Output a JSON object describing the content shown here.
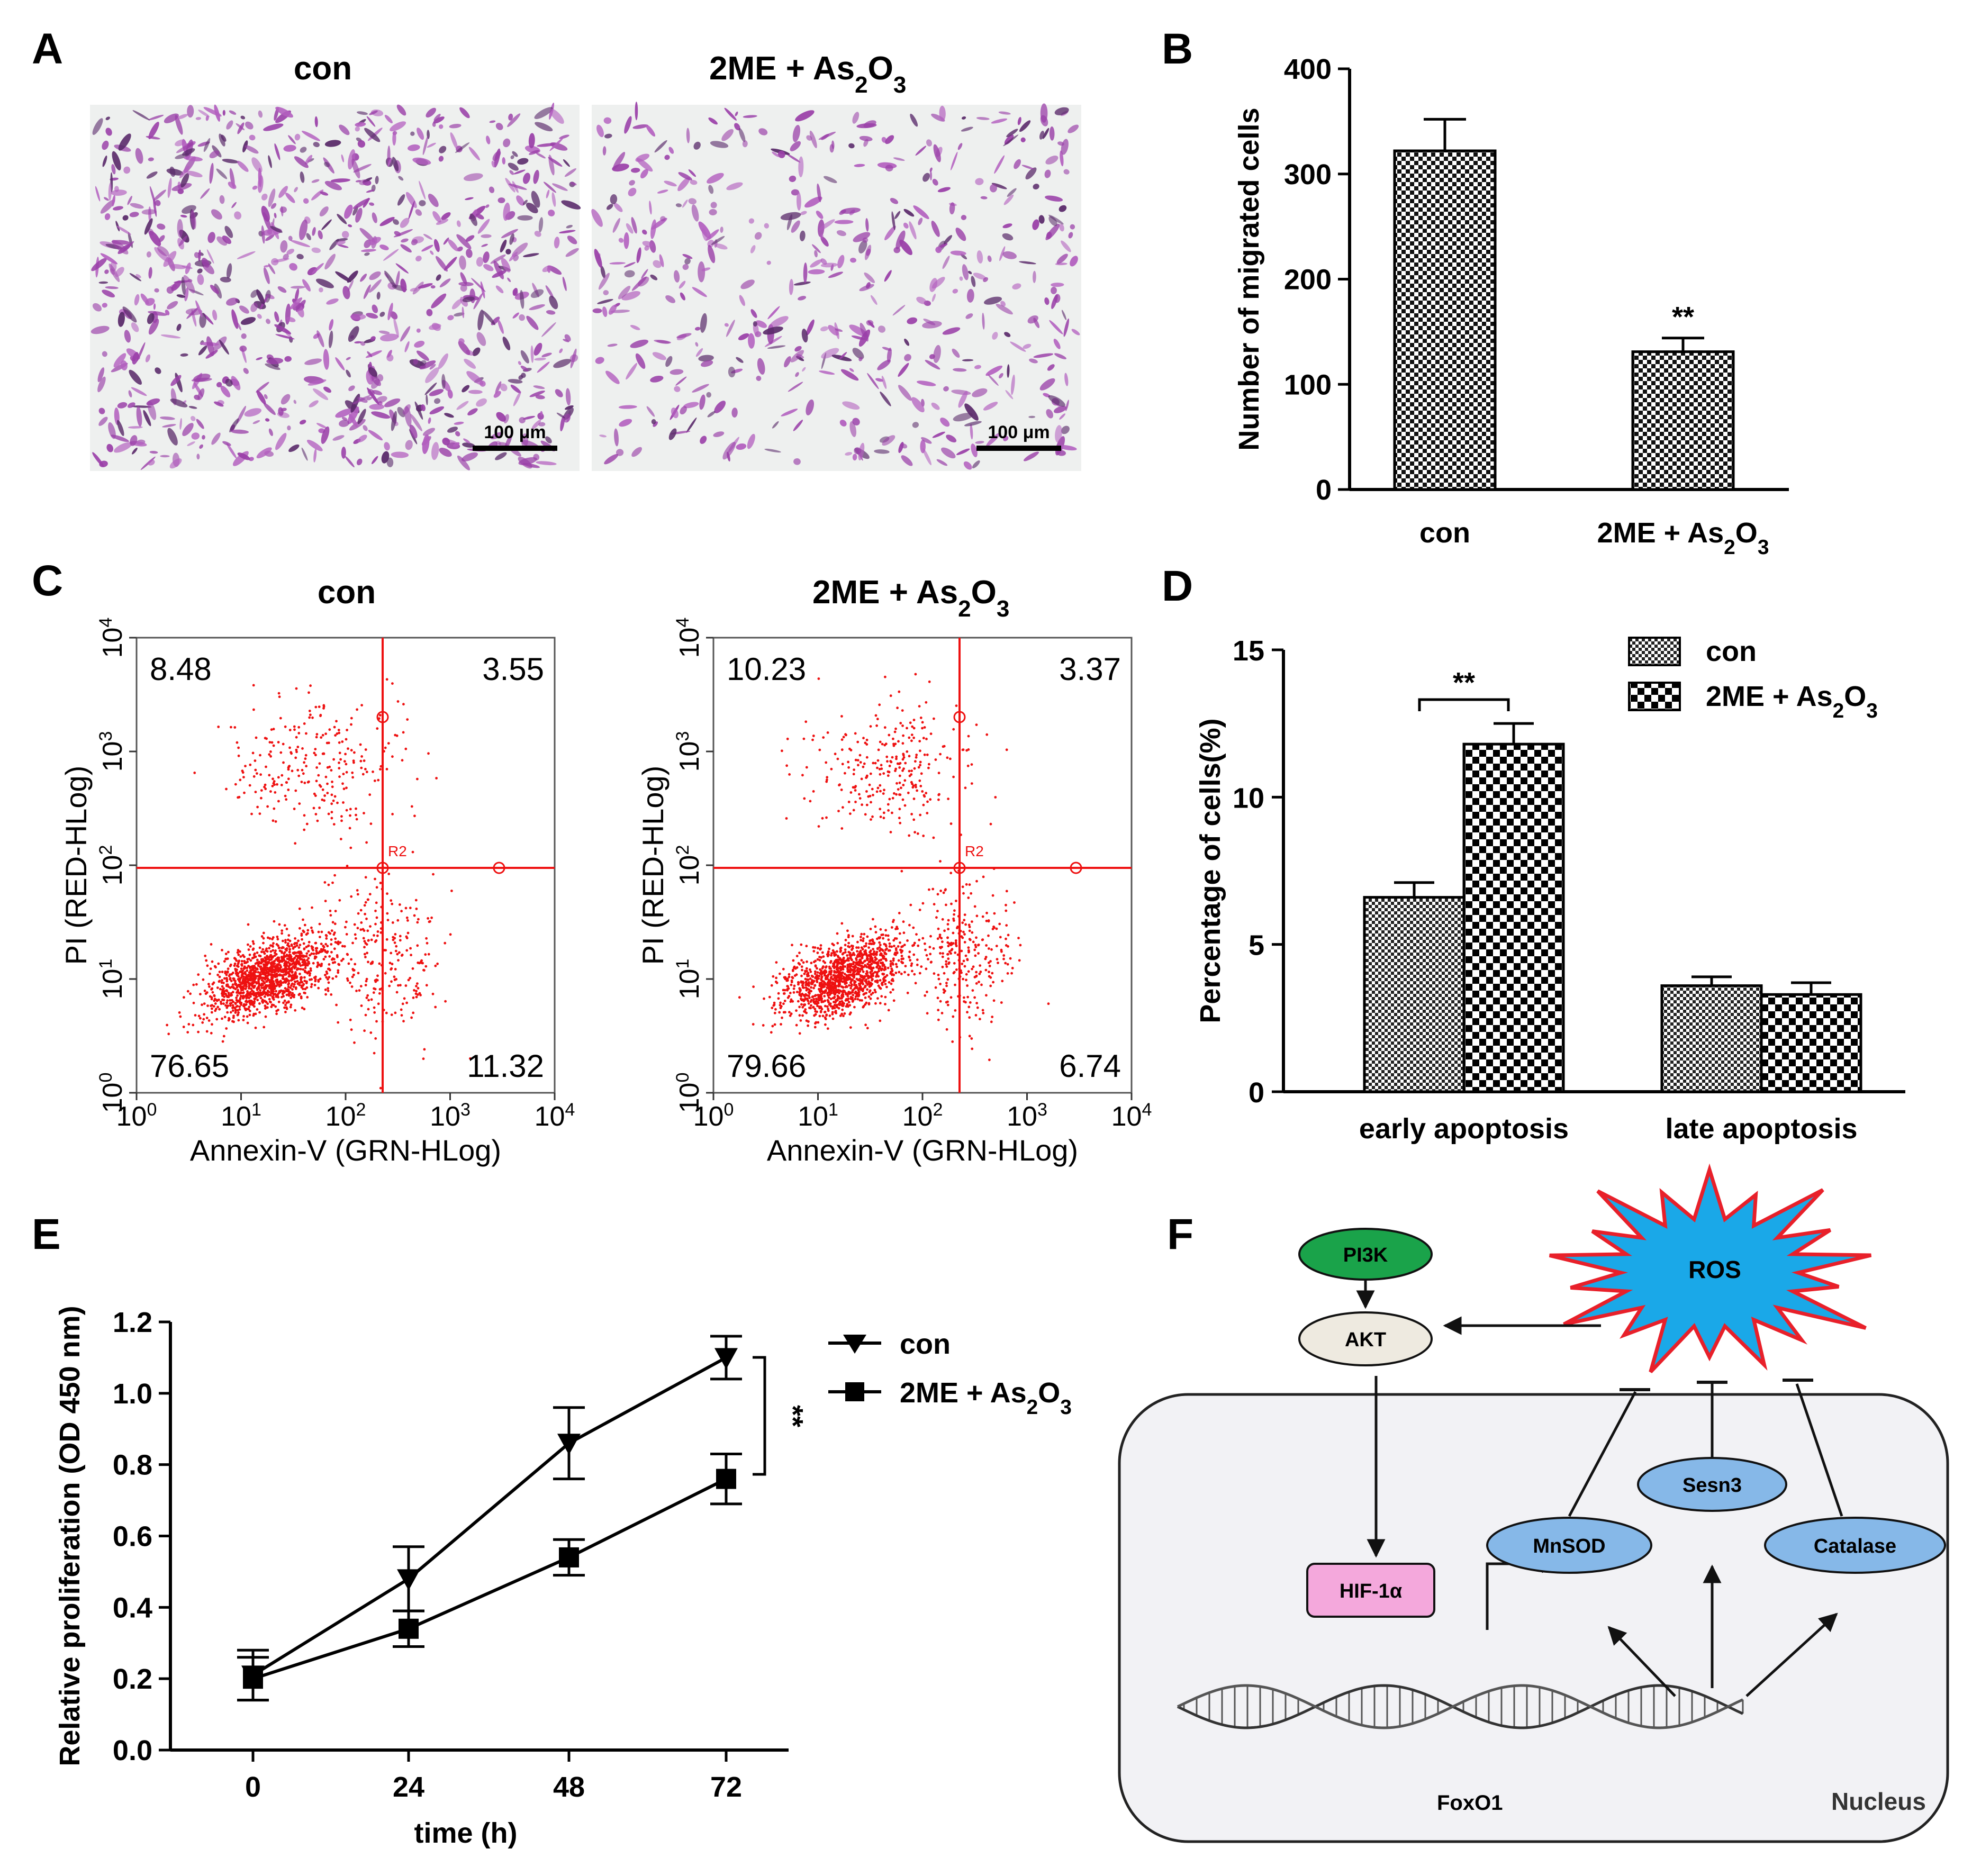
{
  "panels": {
    "a": "A",
    "b": "B",
    "c": "C",
    "d": "D",
    "e": "E",
    "f": "F"
  },
  "panel_a": {
    "label_con": "con",
    "label_treat_main": "2ME + As",
    "label_treat_sub1": "2",
    "label_treat_mid": "O",
    "label_treat_sub2": "3",
    "scale_bar_left": "100 μm",
    "scale_bar_right": "100 μm"
  },
  "panel_c": {
    "title_con": "con",
    "title_treat_main": "2ME + As",
    "title_treat_sub1": "2",
    "title_treat_mid": "O",
    "title_treat_sub2": "3",
    "y_label": "PI (RED-HLog)",
    "x_label": "Annexin-V (GRN-HLog)",
    "ticks": [
      "10",
      "10",
      "10",
      "10",
      "10"
    ],
    "tick_exps": [
      "0",
      "1",
      "2",
      "3",
      "4"
    ],
    "gate_label": "R2",
    "con_quadrants": {
      "ul": "8.48",
      "ur": "3.55",
      "ll": "76.65",
      "lr": "11.32"
    },
    "treat_quadrants": {
      "ul": "10.23",
      "ur": "3.37",
      "ll": "79.66",
      "lr": "6.74"
    },
    "dot_color": "#ee1111",
    "line_color": "#ee1111"
  },
  "panel_f": {
    "pi3k": "PI3K",
    "akt": "AKT",
    "ros": "ROS",
    "sesn3": "Sesn3",
    "mnsod": "MnSOD",
    "catalase": "Catalase",
    "hif": "HIF-1α",
    "foxo1": "FoxO1",
    "nucleus": "Nucleus",
    "pi3k_color": "#1aa34a",
    "ros_fill": "#1aa8e8",
    "ros_stroke": "#e8202a",
    "enzyme_fill": "#86b8e8",
    "hif_fill": "#f4a8dc"
  },
  "chart_data": [
    {
      "type": "bar",
      "panel": "B",
      "categories": [
        "con",
        "2ME + As2O3"
      ],
      "category_labels": [
        {
          "main": "con",
          "sub1": "",
          "mid": "",
          "sub2": ""
        },
        {
          "main": "2ME + As",
          "sub1": "2",
          "mid": "O",
          "sub2": "3"
        }
      ],
      "values": [
        322,
        131
      ],
      "errors": [
        30,
        13
      ],
      "significance": [
        "",
        "**"
      ],
      "ylabel": "Number of migrated cells",
      "ylim": [
        0,
        400
      ],
      "yticks": [
        0,
        100,
        200,
        300,
        400
      ],
      "fill": "checkered"
    },
    {
      "type": "bar",
      "panel": "D",
      "categories": [
        "early apoptosis",
        "late apoptosis"
      ],
      "series": [
        {
          "name": "con",
          "values": [
            6.6,
            3.6
          ],
          "errors": [
            0.5,
            0.3
          ],
          "fill": "fine-checkered"
        },
        {
          "name": "2ME + As2O3",
          "values": [
            11.8,
            3.3
          ],
          "errors": [
            0.7,
            0.4
          ],
          "fill": "coarse-checkered"
        }
      ],
      "legend": [
        {
          "main": "con",
          "sub1": "",
          "mid": "",
          "sub2": ""
        },
        {
          "main": "2ME + As",
          "sub1": "2",
          "mid": "O",
          "sub2": "3"
        }
      ],
      "significance": "**",
      "ylabel": "Percentage of cells(%)",
      "ylim": [
        0,
        15
      ],
      "yticks": [
        0,
        5,
        10,
        15
      ],
      "legend_position": "top-right"
    },
    {
      "type": "line",
      "panel": "E",
      "x": [
        0,
        24,
        48,
        72
      ],
      "series": [
        {
          "name": "con",
          "marker": "triangle-down",
          "values": [
            0.21,
            0.48,
            0.86,
            1.1
          ],
          "errors": [
            0.07,
            0.09,
            0.1,
            0.06
          ]
        },
        {
          "name": "2ME + As2O3",
          "marker": "square",
          "values": [
            0.2,
            0.34,
            0.54,
            0.76
          ],
          "errors": [
            0.06,
            0.05,
            0.05,
            0.07
          ]
        }
      ],
      "legend": [
        {
          "main": "con",
          "sub1": "",
          "mid": "",
          "sub2": ""
        },
        {
          "main": "2ME + As",
          "sub1": "2",
          "mid": "O",
          "sub2": "3"
        }
      ],
      "significance": "**",
      "xlabel": "time (h)",
      "ylabel": "Relative proliferation (OD 450 nm)",
      "ylim": [
        0,
        1.2
      ],
      "yticks": [
        "0.0",
        "0.2",
        "0.4",
        "0.6",
        "0.8",
        "1.0",
        "1.2"
      ],
      "xticks": [
        "0",
        "24",
        "48",
        "72"
      ],
      "legend_position": "top-right"
    }
  ]
}
